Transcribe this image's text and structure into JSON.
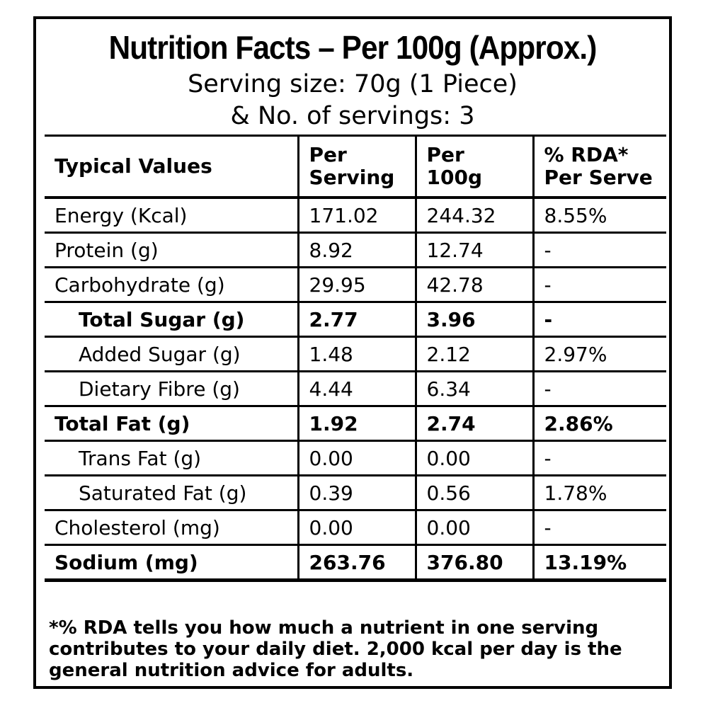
{
  "header": {
    "title": "Nutrition Facts – Per 100g (Approx.)",
    "serving_size": "Serving size: 70g (1 Piece)",
    "servings": "& No. of servings: 3"
  },
  "table": {
    "columns": {
      "typical": "Typical Values",
      "per_serving_1": "Per",
      "per_serving_2": "Serving",
      "per_100g_1": "Per",
      "per_100g_2": "100g",
      "rda_1": "% RDA*",
      "rda_2": "Per Serve"
    },
    "rows": [
      {
        "name": "Energy (Kcal)",
        "serving": "171.02",
        "per100": "244.32",
        "rda": "8.55%"
      },
      {
        "name": "Protein (g)",
        "serving": "8.92",
        "per100": "12.74",
        "rda": "-"
      },
      {
        "name": "Carbohydrate (g)",
        "serving": "29.95",
        "per100": "42.78",
        "rda": "-"
      },
      {
        "name": "Total Sugar (g)",
        "serving": "2.77",
        "per100": "3.96",
        "rda": "-"
      },
      {
        "name": "Added Sugar (g)",
        "serving": "1.48",
        "per100": "2.12",
        "rda": "2.97%"
      },
      {
        "name": "Dietary Fibre (g)",
        "serving": "4.44",
        "per100": "6.34",
        "rda": "-"
      },
      {
        "name": "Total Fat (g)",
        "serving": "1.92",
        "per100": "2.74",
        "rda": "2.86%"
      },
      {
        "name": "Trans Fat (g)",
        "serving": "0.00",
        "per100": "0.00",
        "rda": "-"
      },
      {
        "name": "Saturated Fat (g)",
        "serving": "0.39",
        "per100": "0.56",
        "rda": "1.78%"
      },
      {
        "name": "Cholesterol (mg)",
        "serving": "0.00",
        "per100": "0.00",
        "rda": "-"
      },
      {
        "name": "Sodium (mg)",
        "serving": "263.76",
        "per100": "376.80",
        "rda": "13.19%"
      }
    ]
  },
  "footnote": "*% RDA tells you how much a nutrient in one serving contributes to your daily diet. 2,000 kcal per day is the general nutrition advice for adults."
}
